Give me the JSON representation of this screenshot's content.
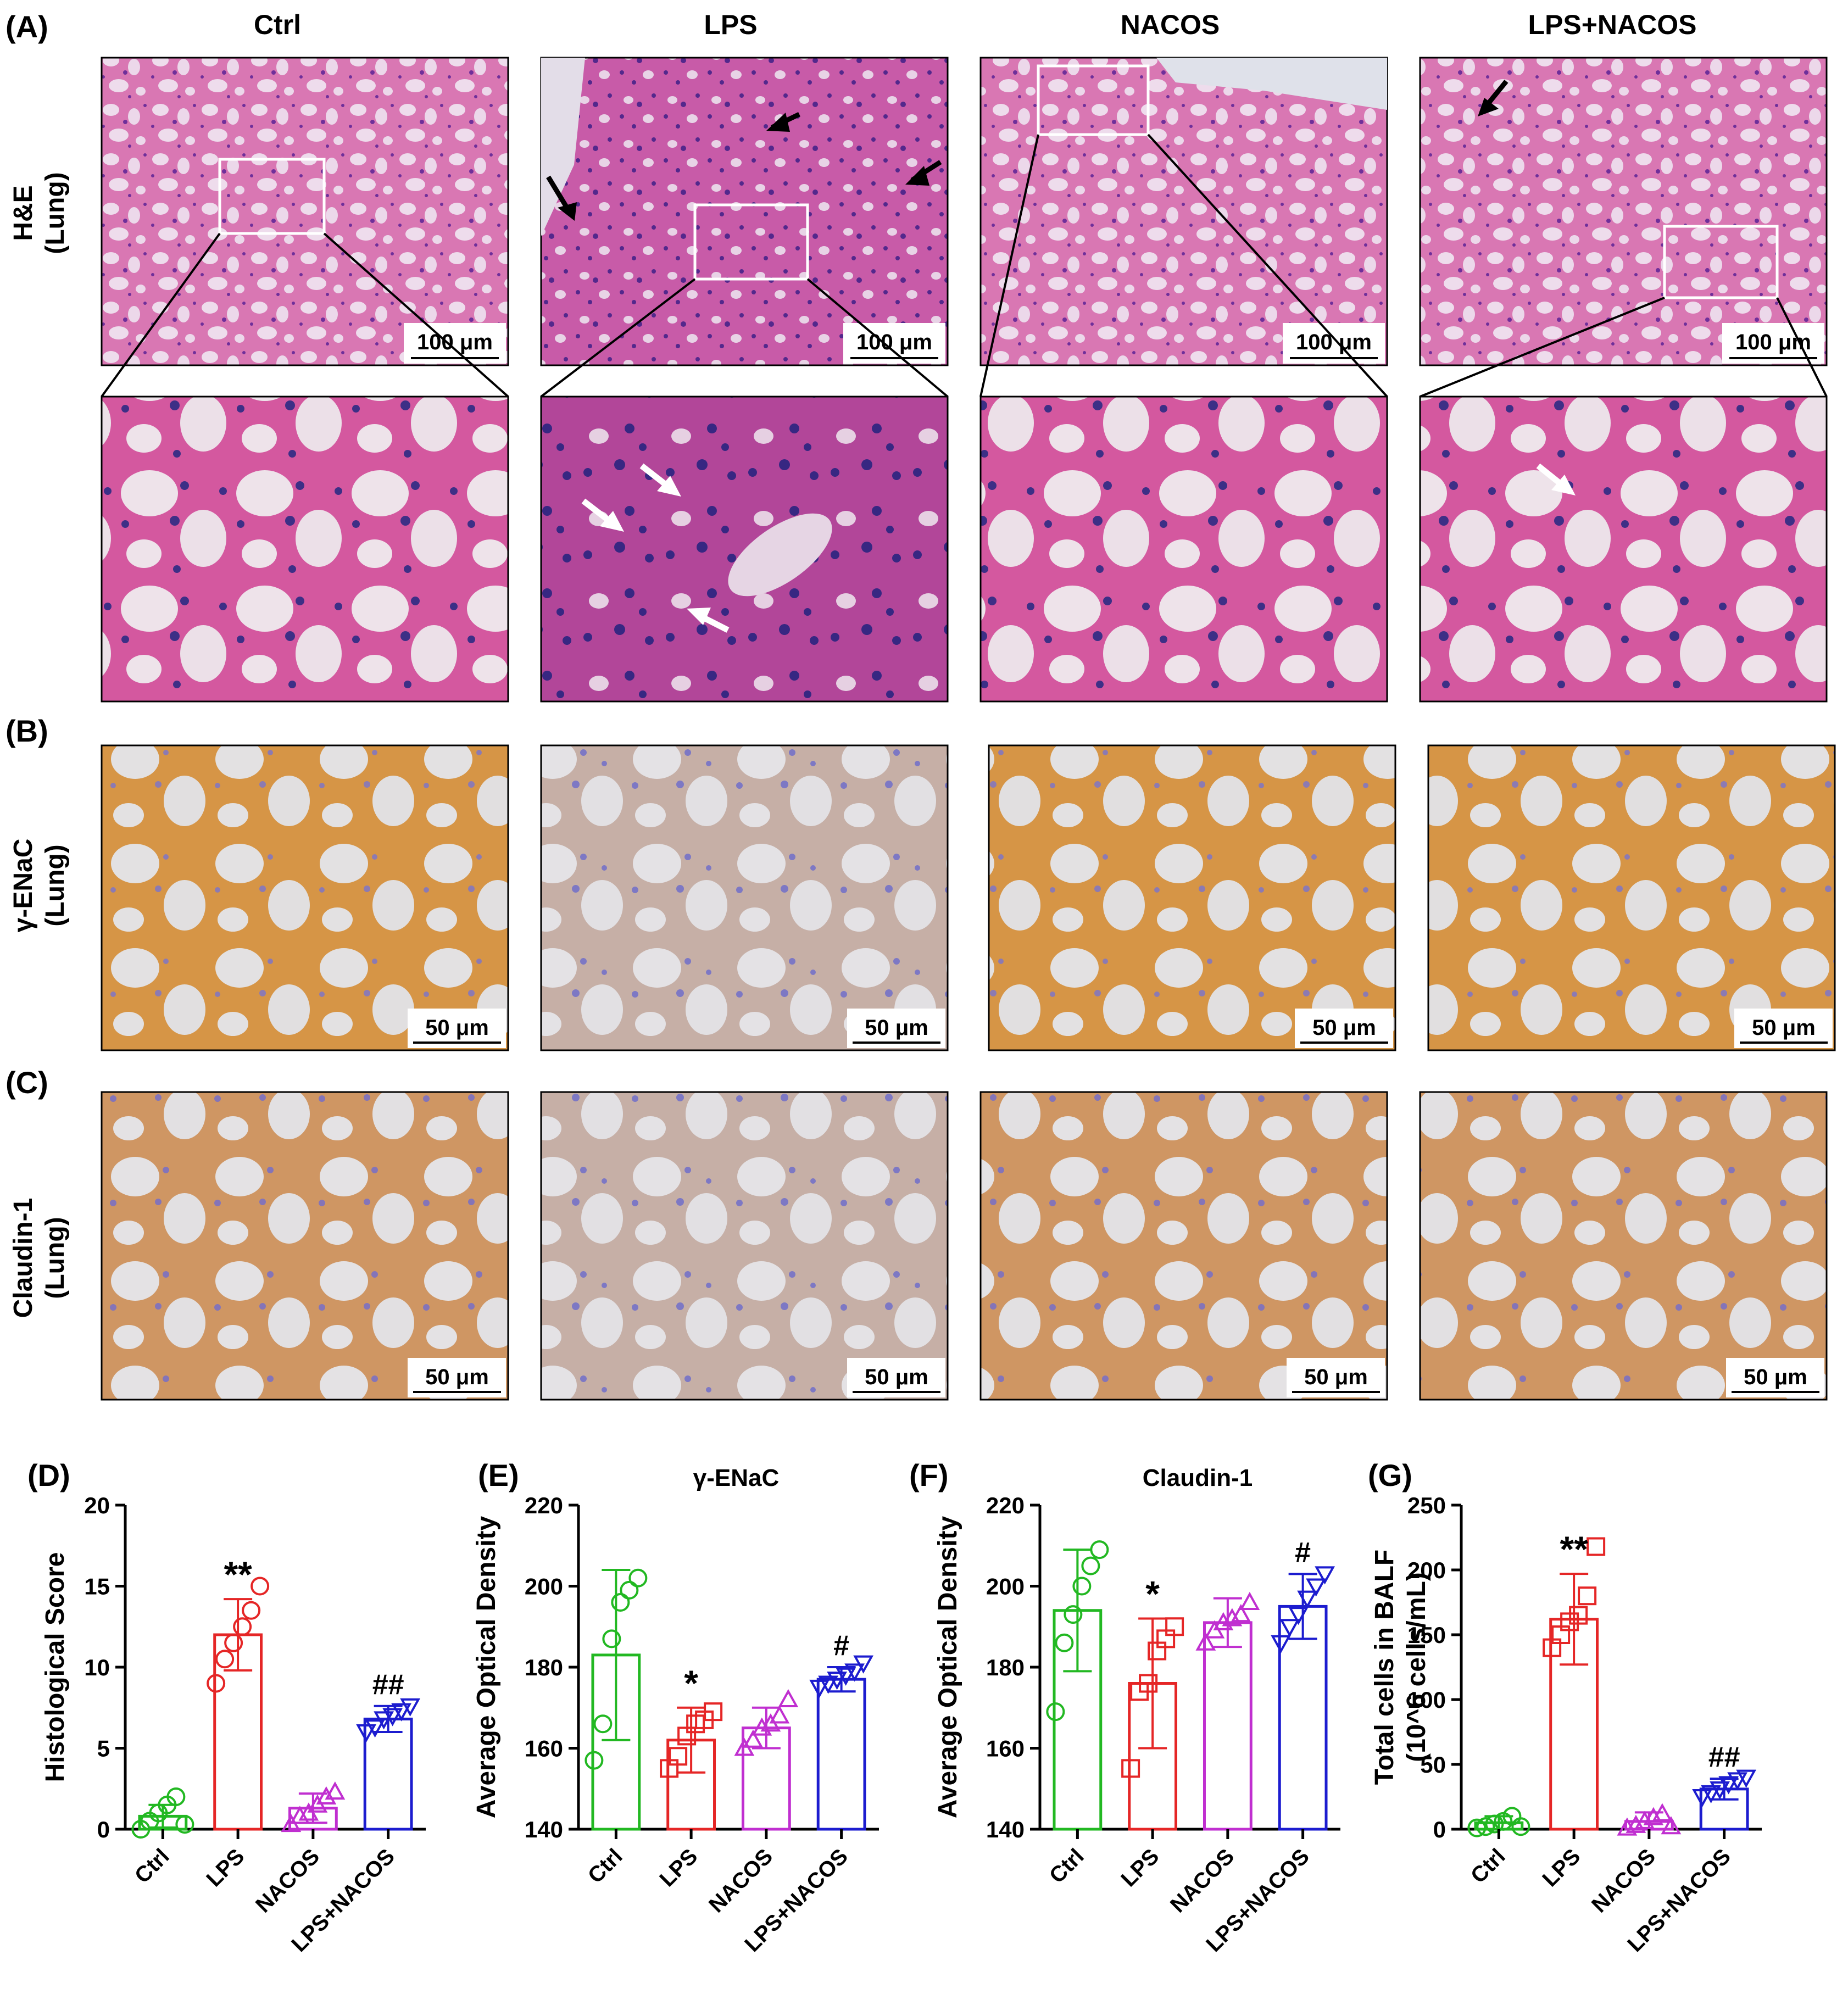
{
  "panel_labels": [
    "(A)",
    "(B)",
    "(C)",
    "(D)",
    "(E)",
    "(F)",
    "(G)"
  ],
  "columns": [
    "Ctrl",
    "LPS",
    "NACOS",
    "LPS+NACOS"
  ],
  "rows": {
    "he": {
      "line1": "H&E",
      "line2": "(Lung)"
    },
    "enac": {
      "line1": "γ-ENaC",
      "line2": "(Lung)"
    },
    "claudin": {
      "line1": "Claudin-1",
      "line2": "(Lung)"
    }
  },
  "scalebars": {
    "he": "100 μm",
    "ihc": "50 μm"
  },
  "colors": {
    "Ctrl": "#22b822",
    "LPS": "#e52626",
    "NACOS": "#c02fd0",
    "LPS+NACOS": "#1c1ccf"
  },
  "chart_data": [
    {
      "panel": "(D)",
      "type": "bar",
      "title": "",
      "ylabel": "Histological Score",
      "ylabel2": "",
      "categories": [
        "Ctrl",
        "LPS",
        "NACOS",
        "LPS+NACOS"
      ],
      "values": [
        0.8,
        12.0,
        1.3,
        6.8
      ],
      "errors": [
        0.7,
        2.2,
        0.9,
        0.8
      ],
      "points": [
        [
          0,
          0.5,
          1,
          1.5,
          2,
          0.3
        ],
        [
          9,
          10.5,
          11.5,
          12.5,
          13.5,
          15
        ],
        [
          0.3,
          0.8,
          1,
          1.5,
          2,
          2.3
        ],
        [
          6,
          6.3,
          6.8,
          7,
          7.3,
          7.6
        ]
      ],
      "markers": [
        "circle",
        "circle",
        "triangle",
        "triangle-down"
      ],
      "annotations": [
        "",
        "**",
        "",
        "##"
      ],
      "ylim": [
        0,
        20
      ],
      "yticks": [
        0,
        5,
        10,
        15,
        20
      ]
    },
    {
      "panel": "(E)",
      "type": "bar",
      "title": "γ-ENaC",
      "ylabel": "Average Optical Density",
      "ylabel2": "",
      "categories": [
        "Ctrl",
        "LPS",
        "NACOS",
        "LPS+NACOS"
      ],
      "values": [
        183,
        162,
        165,
        177
      ],
      "errors": [
        21,
        8,
        5,
        3
      ],
      "points": [
        [
          157,
          166,
          187,
          196,
          199,
          202
        ],
        [
          155,
          158,
          163,
          166,
          167,
          169
        ],
        [
          160,
          162,
          165,
          166,
          168,
          172
        ],
        [
          175,
          176,
          177,
          178,
          179,
          181
        ]
      ],
      "markers": [
        "circle",
        "square",
        "triangle",
        "triangle-down"
      ],
      "annotations": [
        "",
        "*",
        "",
        "#"
      ],
      "ylim": [
        140,
        220
      ],
      "yticks": [
        140,
        160,
        180,
        200,
        220
      ]
    },
    {
      "panel": "(F)",
      "type": "bar",
      "title": "Claudin-1",
      "ylabel": "Average Optical Density",
      "ylabel2": "",
      "categories": [
        "Ctrl",
        "LPS",
        "NACOS",
        "LPS+NACOS"
      ],
      "values": [
        194,
        176,
        191,
        195
      ],
      "errors": [
        15,
        16,
        6,
        8
      ],
      "points": [
        [
          169,
          186,
          193,
          200,
          205,
          209
        ],
        [
          155,
          174,
          176,
          184,
          187,
          190
        ],
        [
          186,
          189,
          191,
          192,
          193,
          196
        ],
        [
          186,
          190,
          193,
          197,
          200,
          203
        ]
      ],
      "markers": [
        "circle",
        "square",
        "triangle",
        "triangle-down"
      ],
      "annotations": [
        "",
        "*",
        "",
        "#"
      ],
      "ylim": [
        140,
        220
      ],
      "yticks": [
        140,
        160,
        180,
        200,
        220
      ]
    },
    {
      "panel": "(G)",
      "type": "bar",
      "title": "",
      "ylabel": "Total cells in BALF",
      "ylabel2": "(10^6 cells/mL)",
      "categories": [
        "Ctrl",
        "LPS",
        "NACOS",
        "LPS+NACOS"
      ],
      "values": [
        5,
        162,
        6,
        31
      ],
      "errors": [
        5,
        35,
        7,
        8
      ],
      "points": [
        [
          1,
          2,
          4,
          6,
          10,
          2
        ],
        [
          140,
          150,
          160,
          165,
          180,
          218
        ],
        [
          1,
          3,
          6,
          9,
          12,
          2
        ],
        [
          25,
          28,
          31,
          35,
          38,
          40
        ]
      ],
      "markers": [
        "circle",
        "square",
        "triangle",
        "triangle-down"
      ],
      "annotations": [
        "",
        "**",
        "",
        "##"
      ],
      "ylim": [
        0,
        250
      ],
      "yticks": [
        0,
        50,
        100,
        150,
        200,
        250
      ]
    }
  ]
}
